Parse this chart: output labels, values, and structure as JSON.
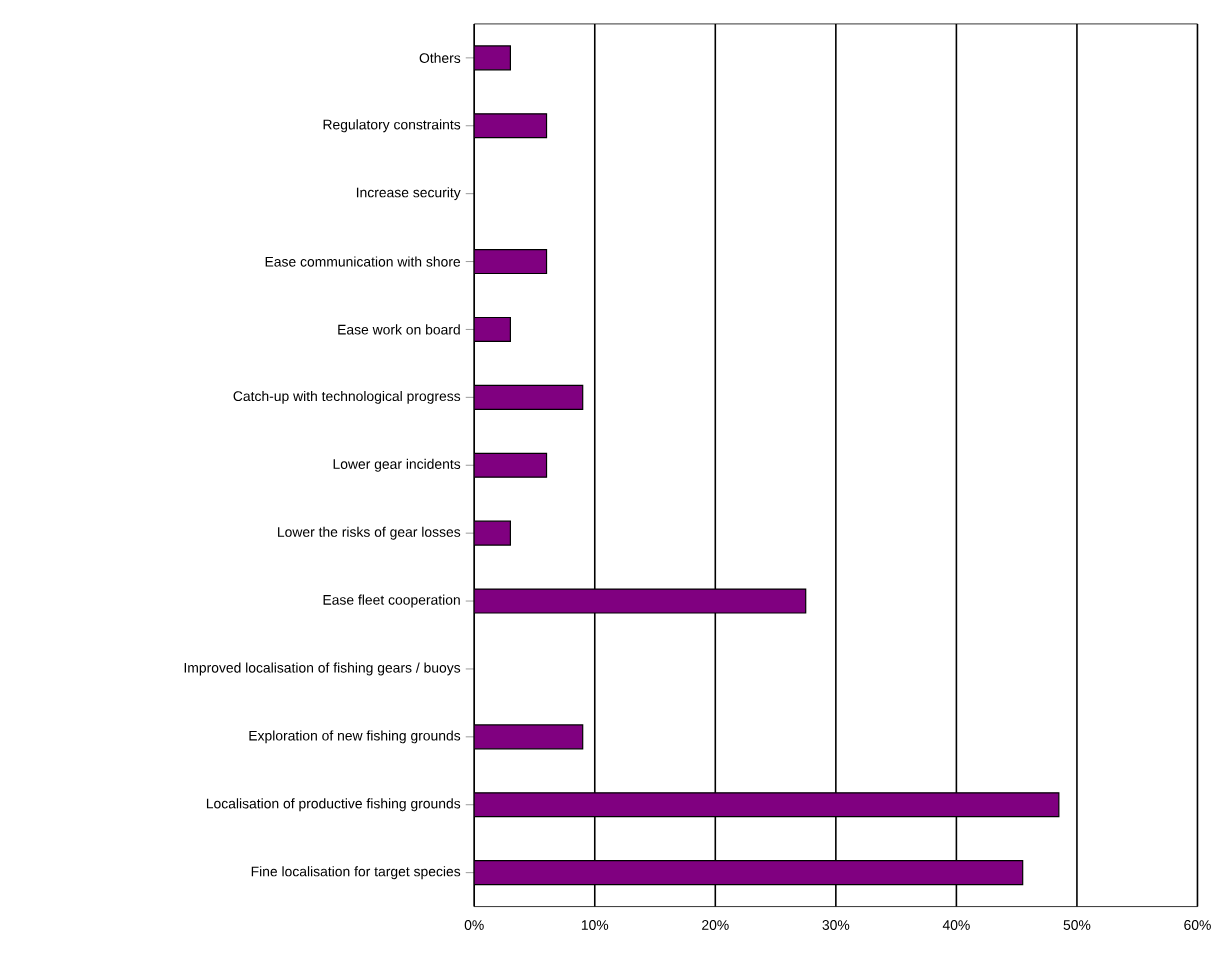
{
  "chart_data": {
    "type": "bar",
    "orientation": "horizontal",
    "categories": [
      "Others",
      "Regulatory constraints",
      "Increase security",
      "Ease communication with shore",
      "Ease work on board",
      "Catch-up with technological progress",
      "Lower gear incidents",
      "Lower the risks of gear losses",
      "Ease fleet cooperation",
      "Improved localisation of fishing gears / buoys",
      "Exploration of new fishing grounds",
      "Localisation of productive fishing grounds",
      "Fine localisation for target species"
    ],
    "values": [
      3,
      6,
      0,
      6,
      3,
      9,
      6,
      3,
      27.5,
      0,
      9,
      48.5,
      45.5
    ],
    "color": "#800080",
    "xlim": [
      0,
      60
    ],
    "xticks": [
      {
        "value": 0,
        "label": "0%"
      },
      {
        "value": 10,
        "label": "10%"
      },
      {
        "value": 20,
        "label": "20%"
      },
      {
        "value": 30,
        "label": "30%"
      },
      {
        "value": 40,
        "label": "40%"
      },
      {
        "value": 50,
        "label": "50%"
      },
      {
        "value": 60,
        "label": "60%"
      }
    ],
    "grid": "x"
  }
}
